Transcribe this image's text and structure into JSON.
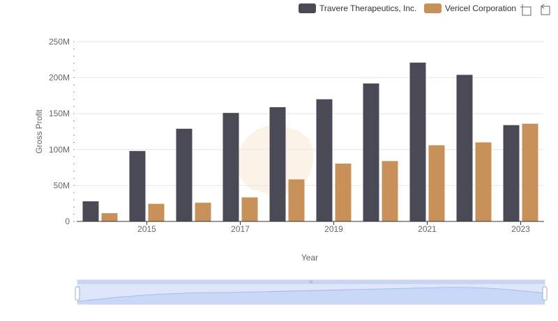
{
  "chart_data": {
    "type": "bar",
    "title": "",
    "xlabel": "Year",
    "ylabel": "Gross Profit",
    "categories": [
      "2014",
      "2015",
      "2016",
      "2017",
      "2018",
      "2019",
      "2020",
      "2021",
      "2022",
      "2023"
    ],
    "x_tick_labels": [
      "2015",
      "2017",
      "2019",
      "2021",
      "2023"
    ],
    "y_tick_labels": [
      "0",
      "50M",
      "100M",
      "150M",
      "200M",
      "250M"
    ],
    "y_ticks": [
      0,
      50000000,
      100000000,
      150000000,
      200000000,
      250000000
    ],
    "ylim": [
      0,
      250000000
    ],
    "grid": true,
    "legend_position": "top-right",
    "series": [
      {
        "name": "Travere Therapeutics, Inc.",
        "color": "#4a4a56",
        "values": [
          28000000,
          98000000,
          129000000,
          151000000,
          159000000,
          170000000,
          192000000,
          221000000,
          204000000,
          134000000
        ]
      },
      {
        "name": "Vericel Corporation",
        "color": "#c8915a",
        "values": [
          11500000,
          24500000,
          26000000,
          33500000,
          58500000,
          80500000,
          84000000,
          106000000,
          110000000,
          136000000
        ]
      }
    ]
  },
  "toolbar": {
    "zoom_icon": "zoom-select-icon",
    "reset_icon": "zoom-reset-icon"
  },
  "data_zoom": {
    "start_percent": 0,
    "end_percent": 100,
    "handle_label": "III"
  }
}
